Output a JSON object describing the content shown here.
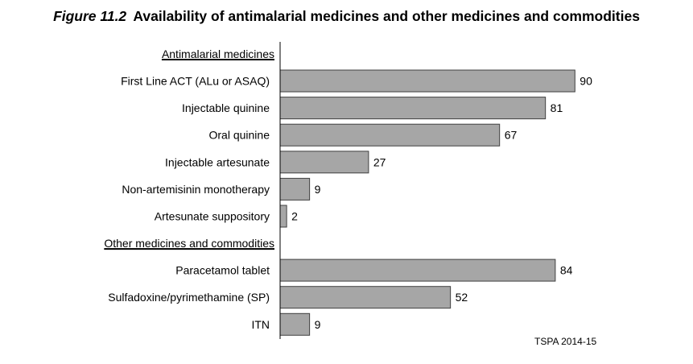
{
  "figure": {
    "number": "Figure 11.2",
    "title": "Availability of antimalarial medicines and other medicines and commodities",
    "source": "TSPA 2014-15"
  },
  "chart_data": {
    "type": "bar",
    "orientation": "horizontal",
    "title": "Availability of antimalarial medicines and other medicines and commodities",
    "xlabel": "",
    "ylabel": "",
    "xlim": [
      0,
      100
    ],
    "grid": false,
    "legend": "none",
    "bar_color": "#a6a6a6",
    "bar_border_color": "#404040",
    "groups": [
      {
        "name": "Antimalarial medicines",
        "categories": [
          "First Line ACT (ALu or ASAQ)",
          "Injectable quinine",
          "Oral quinine",
          "Injectable artesunate",
          "Non-artemisinin monotherapy",
          "Artesunate suppository"
        ],
        "values": [
          90,
          81,
          67,
          27,
          9,
          2
        ]
      },
      {
        "name": "Other medicines and commodities",
        "categories": [
          "Paracetamol tablet",
          "Sulfadoxine/pyrimethamine (SP)",
          "ITN"
        ],
        "values": [
          84,
          52,
          9
        ]
      }
    ]
  }
}
